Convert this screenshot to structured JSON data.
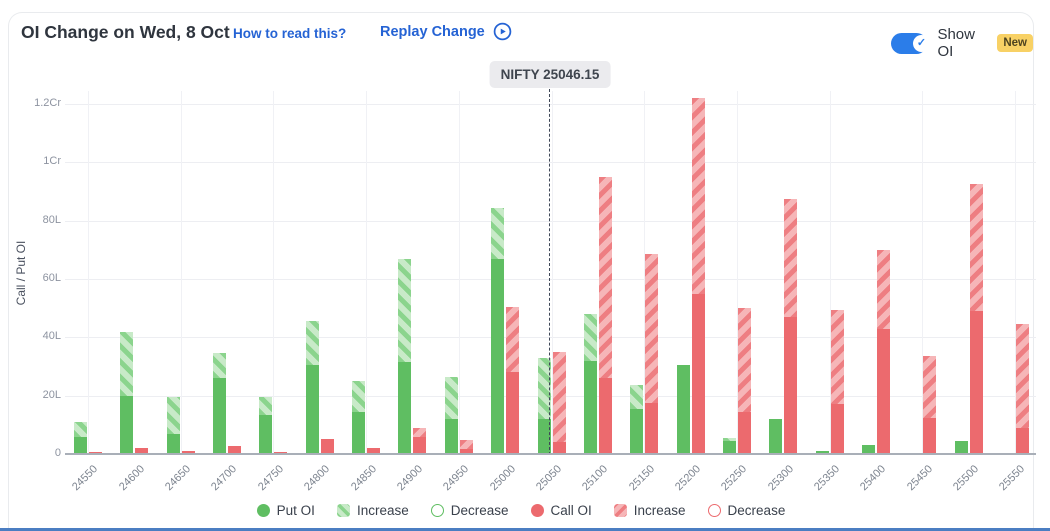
{
  "header": {
    "title": "OI Change on Wed, 8 Oct",
    "how_to_read_label": "How to read this?",
    "replay_label": "Replay Change",
    "show_oi_label": "Show OI",
    "new_badge": "New"
  },
  "reference": {
    "label": "NIFTY 25046.15",
    "value": 25046.15
  },
  "colors": {
    "put_solid": "#5fbe62",
    "put_hatch_light": "#c8eac8",
    "put_hatch_stripe": "#8bd48d",
    "call_solid": "#ec6a6e",
    "call_hatch_light": "#f6b6b8",
    "call_hatch_stripe": "#ee7e82",
    "link_blue": "#2563d4",
    "toggle_blue": "#2b7de9",
    "badge_yellow": "#f8d165"
  },
  "chart_data": {
    "type": "bar",
    "stacked": true,
    "title": "OI Change on Wed, 8 Oct",
    "ylabel": "Call / Put OI",
    "unit": "lakh (L), 1Cr = 100L",
    "ylim": [
      0,
      125
    ],
    "grid": true,
    "legend_position": "bottom",
    "yticks": [
      {
        "value": 0,
        "label": "0"
      },
      {
        "value": 20,
        "label": "20L"
      },
      {
        "value": 40,
        "label": "40L"
      },
      {
        "value": 60,
        "label": "60L"
      },
      {
        "value": 80,
        "label": "80L"
      },
      {
        "value": 100,
        "label": "1Cr"
      },
      {
        "value": 120,
        "label": "1.2Cr"
      }
    ],
    "categories": [
      "24550",
      "24600",
      "24650",
      "24700",
      "24750",
      "24800",
      "24850",
      "24900",
      "24950",
      "25000",
      "25050",
      "25100",
      "25150",
      "25200",
      "25250",
      "25300",
      "25350",
      "25400",
      "25450",
      "25500",
      "25550"
    ],
    "series": [
      {
        "name": "Put OI (existing)",
        "legend": "Put OI",
        "style": "solid-green",
        "values": [
          6,
          20,
          7,
          26,
          13.5,
          30.5,
          14.5,
          31.5,
          12,
          67,
          12,
          32,
          15.5,
          30.5,
          4.5,
          12,
          1,
          3,
          0.5,
          4.5,
          0.3
        ]
      },
      {
        "name": "Put OI Increase",
        "legend": "Increase",
        "style": "hatch-green",
        "values": [
          5,
          22,
          12.5,
          8.5,
          6,
          15,
          10.5,
          35.5,
          14.5,
          17.5,
          21,
          16,
          8,
          0,
          1,
          0,
          0,
          0,
          0,
          0,
          0
        ]
      },
      {
        "name": "Call OI (existing)",
        "legend": "Call OI",
        "style": "solid-red",
        "values": [
          0.7,
          2,
          1,
          2.7,
          0.7,
          5,
          2,
          6,
          1.7,
          28,
          4,
          26,
          17.5,
          55,
          14.5,
          47,
          17,
          43,
          12.5,
          49,
          9
        ]
      },
      {
        "name": "Call OI Increase",
        "legend": "Increase",
        "style": "hatch-red",
        "values": [
          0,
          0,
          0,
          0,
          0,
          0,
          0,
          3,
          3,
          22.5,
          31,
          69,
          51,
          67,
          35.5,
          40.5,
          32.5,
          27,
          21,
          43.5,
          35.5
        ]
      }
    ],
    "reference_line": {
      "label": "NIFTY 25046.15",
      "value": 25046.15
    },
    "legend": [
      {
        "label": "Put OI",
        "shape": "solid",
        "color": "green"
      },
      {
        "label": "Increase",
        "shape": "hatch",
        "color": "green"
      },
      {
        "label": "Decrease",
        "shape": "outline",
        "color": "green"
      },
      {
        "label": "Call OI",
        "shape": "solid",
        "color": "red"
      },
      {
        "label": "Increase",
        "shape": "hatch",
        "color": "red"
      },
      {
        "label": "Decrease",
        "shape": "outline",
        "color": "red"
      }
    ]
  }
}
